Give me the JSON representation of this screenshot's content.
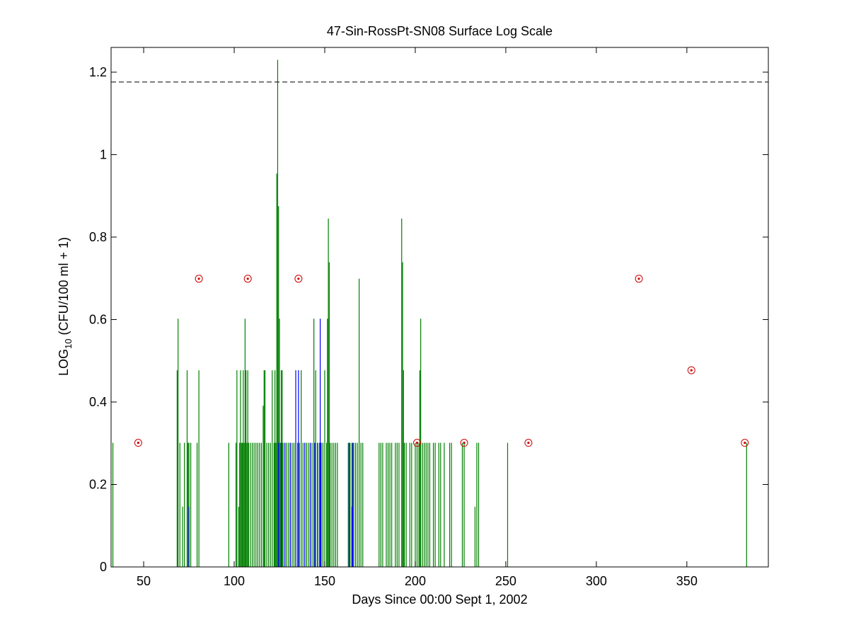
{
  "chart_data": {
    "type": "bar",
    "title": "47-Sin-RossPt-SN08 Surface Log Scale",
    "xlabel": "Days Since 00:00 Sept 1, 2002",
    "ylabel": {
      "main": "LOG",
      "sub": "10",
      "rest": " (CFU/100 ml + 1)"
    },
    "xlim": [
      32,
      395
    ],
    "ylim": [
      0,
      1.26
    ],
    "xticks": [
      50,
      100,
      150,
      200,
      250,
      300,
      350
    ],
    "yticks": [
      0,
      0.2,
      0.4,
      0.6,
      0.8,
      1,
      1.2
    ],
    "xtick_labels": [
      "50",
      "100",
      "150",
      "200",
      "250",
      "300",
      "350"
    ],
    "ytick_labels": [
      "0",
      "0.2",
      "0.4",
      "0.6",
      "0.8",
      "1",
      "1.2"
    ],
    "threshold": {
      "y": 1.176,
      "style": "dashed",
      "color": "#000000"
    },
    "series": [
      {
        "style": "vertical-lines",
        "color": "#007f00",
        "points": [
          [
            33,
            0.301
          ],
          [
            68.5,
            0.477
          ],
          [
            69,
            0.602
          ],
          [
            70,
            0.301
          ],
          [
            71.5,
            0.146
          ],
          [
            72.5,
            0.301
          ],
          [
            74,
            0.477
          ],
          [
            74.5,
            0.301
          ],
          [
            75,
            0.301
          ],
          [
            76,
            0.301
          ],
          [
            79.5,
            0.301
          ],
          [
            80.5,
            0.477
          ],
          [
            97,
            0.301
          ],
          [
            101,
            0.301
          ],
          [
            101.5,
            0.477
          ],
          [
            102.5,
            0.146
          ],
          [
            103,
            0.301
          ],
          [
            103.5,
            0.477
          ],
          [
            104,
            0.301
          ],
          [
            104.5,
            0.301
          ],
          [
            105,
            0.477
          ],
          [
            105.5,
            0.301
          ],
          [
            106,
            0.602
          ],
          [
            106.5,
            0.477
          ],
          [
            107,
            0.301
          ],
          [
            107.5,
            0.477
          ],
          [
            108,
            0.301
          ],
          [
            109,
            0.301
          ],
          [
            110,
            0.301
          ],
          [
            111,
            0.301
          ],
          [
            112,
            0.301
          ],
          [
            113,
            0.301
          ],
          [
            114,
            0.301
          ],
          [
            115,
            0.301
          ],
          [
            116,
            0.391
          ],
          [
            116.5,
            0.477
          ],
          [
            117,
            0.477
          ],
          [
            118,
            0.301
          ],
          [
            119,
            0.301
          ],
          [
            120,
            0.301
          ],
          [
            121,
            0.477
          ],
          [
            122,
            0.301
          ],
          [
            122.5,
            0.477
          ],
          [
            123,
            0.301
          ],
          [
            123.5,
            0.954
          ],
          [
            124,
            1.23
          ],
          [
            124.5,
            0.875
          ],
          [
            125,
            0.602
          ],
          [
            125.5,
            0.301
          ],
          [
            126,
            0.477
          ],
          [
            126.5,
            0.477
          ],
          [
            127,
            0.301
          ],
          [
            128,
            0.301
          ],
          [
            129,
            0.301
          ],
          [
            130,
            0.301
          ],
          [
            131,
            0.301
          ],
          [
            132,
            0.301
          ],
          [
            133,
            0.301
          ],
          [
            134,
            0.301
          ],
          [
            135,
            0.301
          ],
          [
            136,
            0.301
          ],
          [
            137,
            0.477
          ],
          [
            138,
            0.301
          ],
          [
            139,
            0.301
          ],
          [
            140,
            0.301
          ],
          [
            141,
            0.301
          ],
          [
            142,
            0.301
          ],
          [
            143,
            0.301
          ],
          [
            144,
            0.602
          ],
          [
            145,
            0.477
          ],
          [
            146,
            0.301
          ],
          [
            147,
            0.301
          ],
          [
            148,
            0.301
          ],
          [
            149,
            0.301
          ],
          [
            150,
            0.477
          ],
          [
            151,
            0.301
          ],
          [
            151.5,
            0.602
          ],
          [
            152,
            0.845
          ],
          [
            152.5,
            0.739
          ],
          [
            153,
            0.301
          ],
          [
            154,
            0.301
          ],
          [
            155,
            0.301
          ],
          [
            156,
            0.301
          ],
          [
            157,
            0.301
          ],
          [
            163,
            0.301
          ],
          [
            164,
            0.301
          ],
          [
            165,
            0.301
          ],
          [
            166,
            0.301
          ],
          [
            167,
            0.301
          ],
          [
            168,
            0.301
          ],
          [
            169,
            0.699
          ],
          [
            170,
            0.301
          ],
          [
            171,
            0.301
          ],
          [
            180,
            0.301
          ],
          [
            181,
            0.301
          ],
          [
            182,
            0.301
          ],
          [
            184,
            0.301
          ],
          [
            185,
            0.301
          ],
          [
            186,
            0.301
          ],
          [
            187,
            0.301
          ],
          [
            189,
            0.301
          ],
          [
            190,
            0.301
          ],
          [
            191,
            0.301
          ],
          [
            192.5,
            0.845
          ],
          [
            193,
            0.739
          ],
          [
            193.5,
            0.477
          ],
          [
            194,
            0.301
          ],
          [
            195,
            0.301
          ],
          [
            197,
            0.301
          ],
          [
            198,
            0.301
          ],
          [
            200,
            0.301
          ],
          [
            201,
            0.301
          ],
          [
            202,
            0.301
          ],
          [
            202.5,
            0.477
          ],
          [
            203,
            0.602
          ],
          [
            204,
            0.301
          ],
          [
            205,
            0.301
          ],
          [
            206,
            0.301
          ],
          [
            207,
            0.301
          ],
          [
            208,
            0.301
          ],
          [
            210,
            0.301
          ],
          [
            211,
            0.301
          ],
          [
            213,
            0.301
          ],
          [
            214,
            0.301
          ],
          [
            216,
            0.301
          ],
          [
            219,
            0.301
          ],
          [
            220,
            0.301
          ],
          [
            226,
            0.301
          ],
          [
            227,
            0.301
          ],
          [
            233,
            0.146
          ],
          [
            234,
            0.301
          ],
          [
            235,
            0.301
          ],
          [
            251,
            0.301
          ],
          [
            383,
            0.301
          ]
        ]
      },
      {
        "style": "vertical-lines",
        "color": "#0000ff",
        "points": [
          [
            75,
            0.146
          ],
          [
            124.5,
            0.301
          ],
          [
            126,
            0.301
          ],
          [
            128,
            0.301
          ],
          [
            131,
            0.301
          ],
          [
            134,
            0.477
          ],
          [
            135.5,
            0.477
          ],
          [
            139,
            0.301
          ],
          [
            142,
            0.301
          ],
          [
            144.5,
            0.301
          ],
          [
            146,
            0.301
          ],
          [
            147.5,
            0.602
          ],
          [
            148,
            0.301
          ],
          [
            163.5,
            0.301
          ],
          [
            165,
            0.146
          ],
          [
            165.5,
            0.301
          ]
        ]
      },
      {
        "style": "circle-markers",
        "color": "#cc0000",
        "points": [
          [
            47,
            0.301
          ],
          [
            80.5,
            0.699
          ],
          [
            107.5,
            0.699
          ],
          [
            135.5,
            0.699
          ],
          [
            201,
            0.301
          ],
          [
            227,
            0.301
          ],
          [
            262.5,
            0.301
          ],
          [
            323.5,
            0.699
          ],
          [
            352.5,
            0.477
          ],
          [
            382,
            0.301
          ]
        ]
      }
    ]
  }
}
